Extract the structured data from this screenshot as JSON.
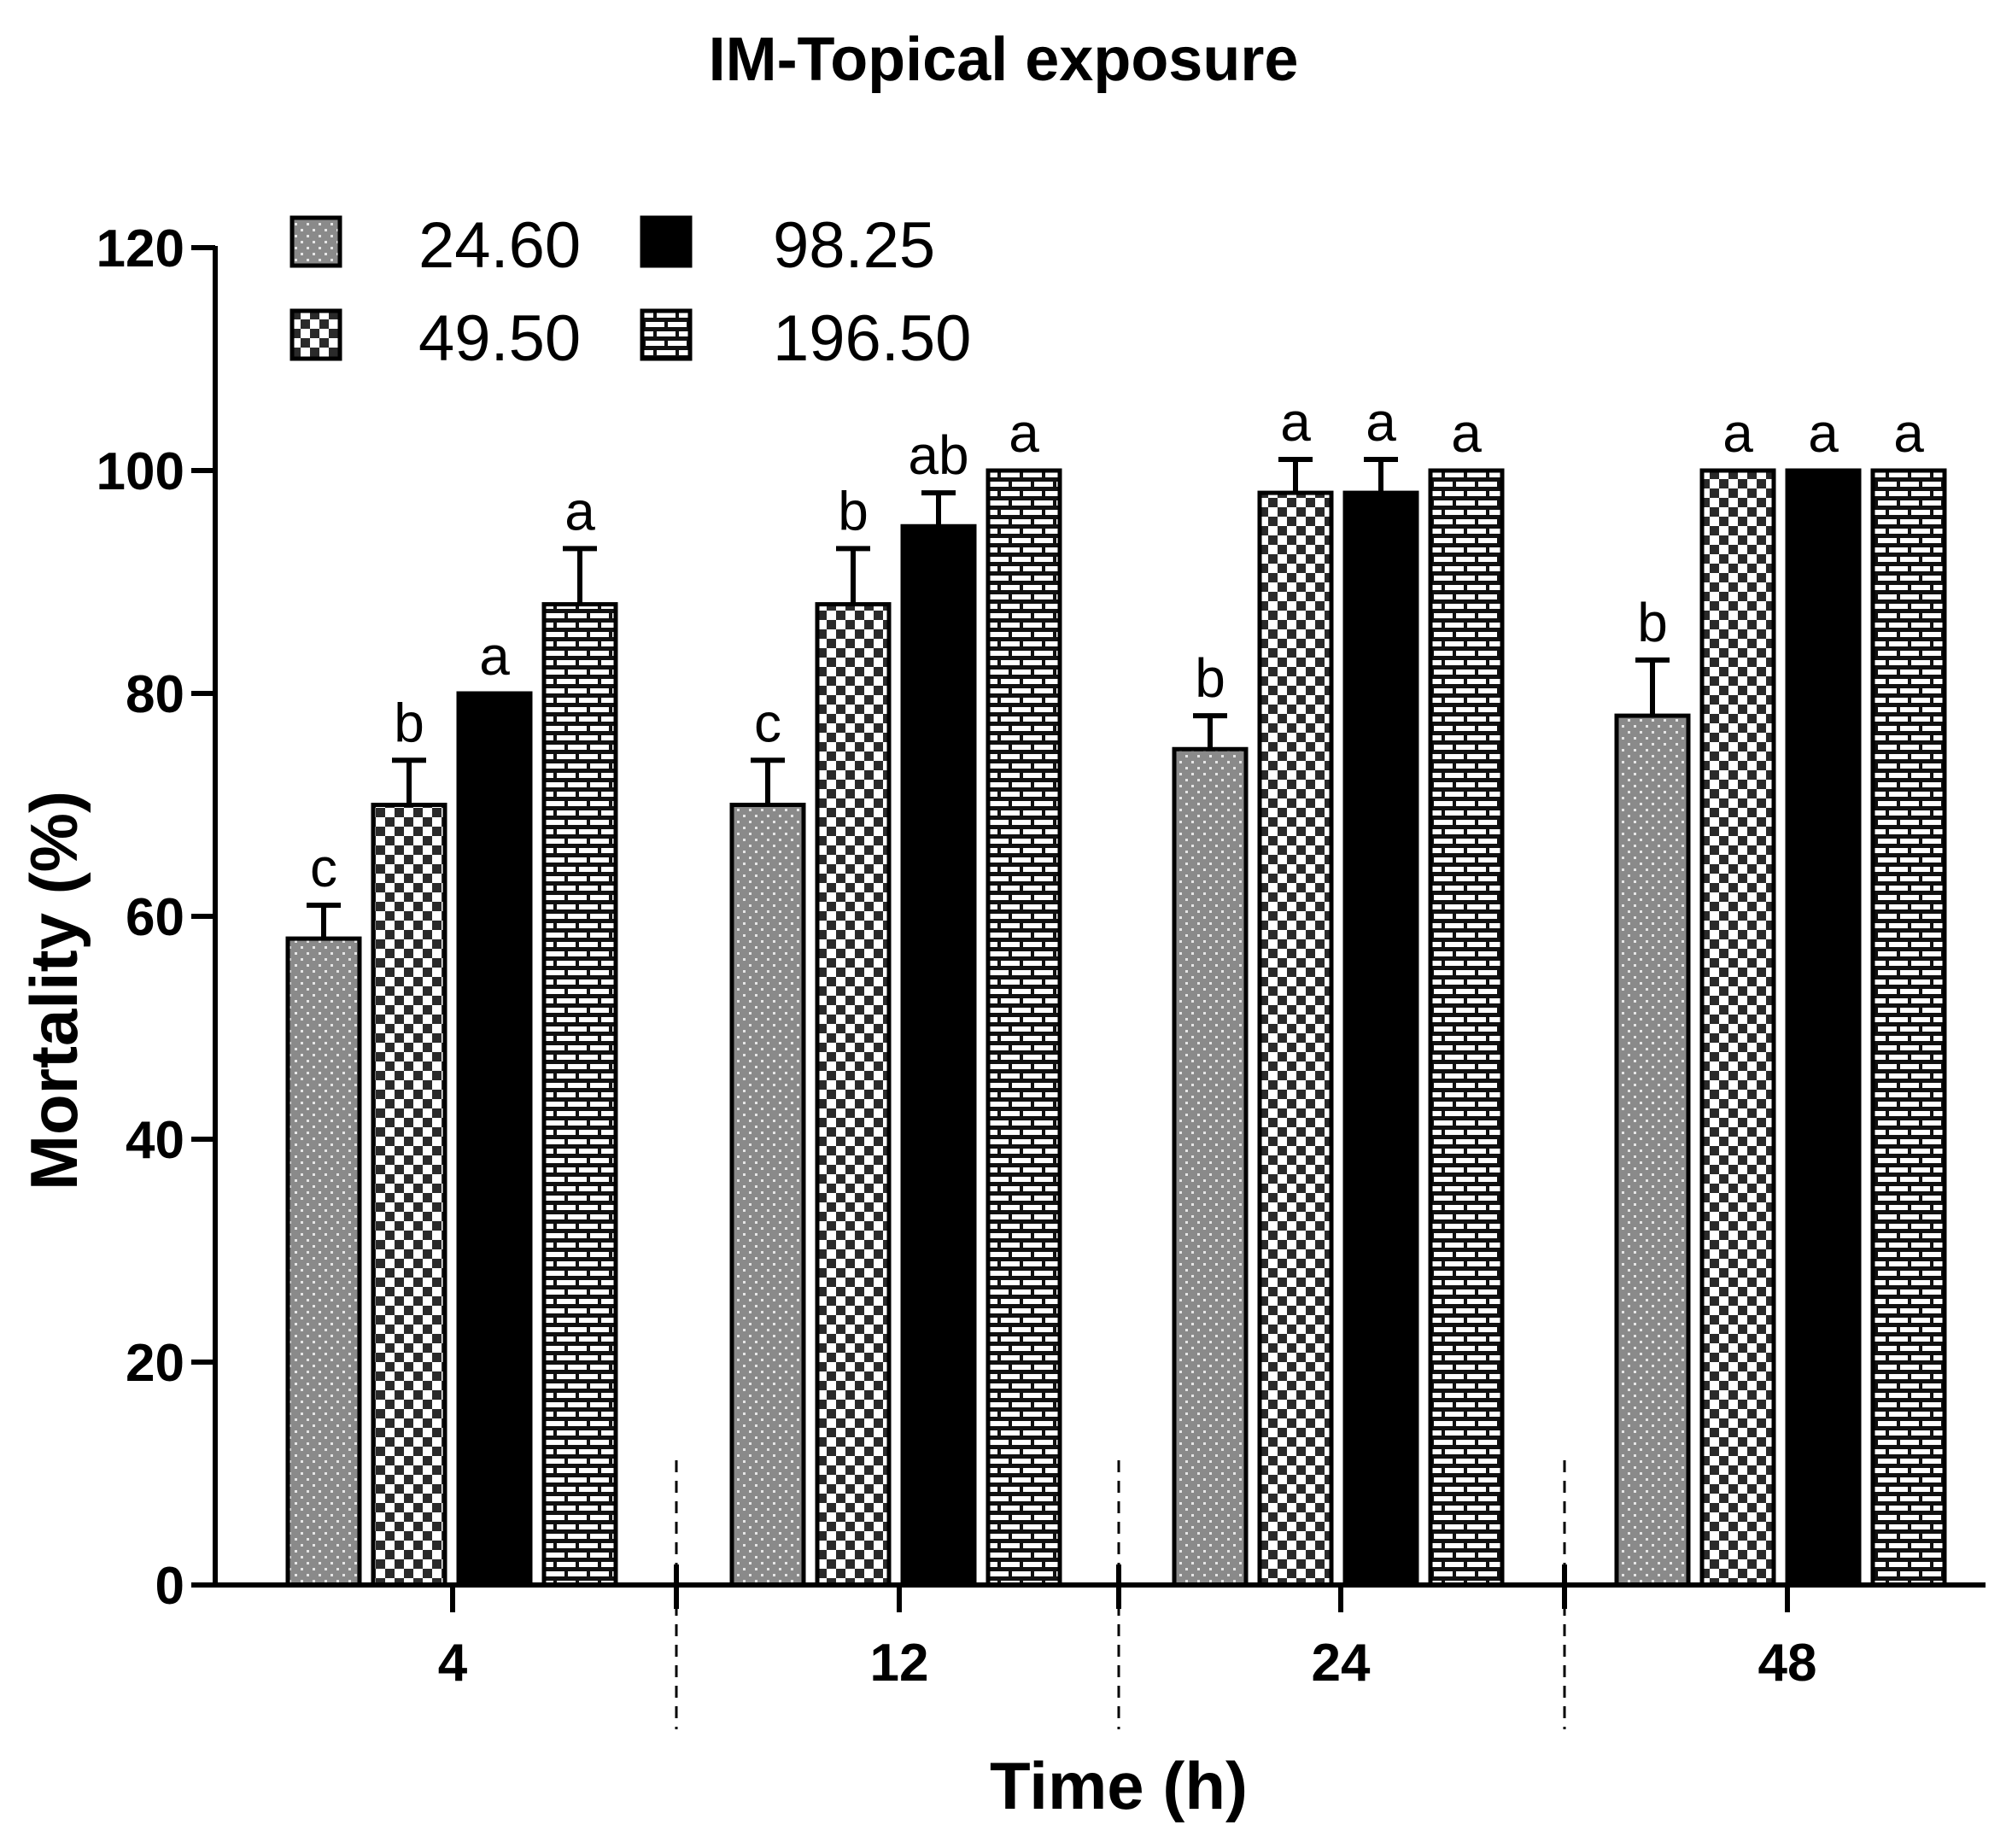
{
  "chart_data": {
    "type": "bar",
    "title": "IM-Topical exposure",
    "xlabel": "Time (h)",
    "ylabel": "Mortality (%)",
    "ylim": [
      0,
      120
    ],
    "yticks": [
      0,
      20,
      40,
      60,
      80,
      100,
      120
    ],
    "categories": [
      "4",
      "12",
      "24",
      "48"
    ],
    "legend_position": "top-left",
    "series": [
      {
        "name": "24.60",
        "pattern": "dots",
        "values": [
          58,
          70,
          75,
          78
        ],
        "errors": [
          3,
          4,
          3,
          5
        ],
        "letters": [
          "c",
          "c",
          "b",
          "b"
        ]
      },
      {
        "name": "49.50",
        "pattern": "checker",
        "values": [
          70,
          88,
          98,
          100
        ],
        "errors": [
          4,
          5,
          3,
          0
        ],
        "letters": [
          "b",
          "b",
          "a",
          "a"
        ]
      },
      {
        "name": "98.25",
        "pattern": "solid",
        "values": [
          80,
          95,
          98,
          100
        ],
        "errors": [
          0,
          3,
          3,
          0
        ],
        "letters": [
          "a",
          "ab",
          "a",
          "a"
        ]
      },
      {
        "name": "196.50",
        "pattern": "brick",
        "values": [
          88,
          100,
          100,
          100
        ],
        "errors": [
          5,
          0,
          0,
          0
        ],
        "letters": [
          "a",
          "a",
          "a",
          "a"
        ]
      }
    ]
  }
}
